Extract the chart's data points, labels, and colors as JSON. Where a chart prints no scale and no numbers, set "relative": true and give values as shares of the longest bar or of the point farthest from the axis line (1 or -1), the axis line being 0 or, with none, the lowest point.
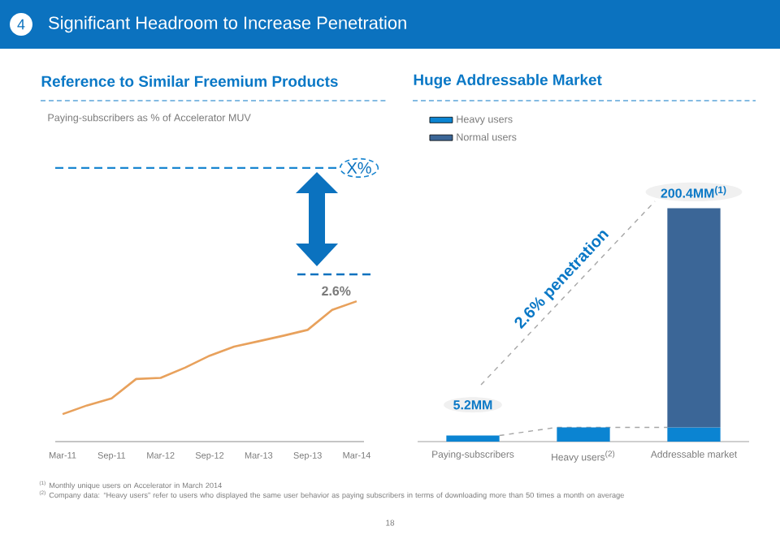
{
  "chart_data": [
    {
      "type": "other",
      "title": "Significant Headroom to Increase Penetration",
      "annotations": [
        "4",
        "$^{(1)}$ Monthly unique users on Accelerator in March 2014",
        "$^{(2)}$ Company data: “Heavy users” refer to users who displayed the same user behavior as paying subscribers in terms of downloading more than 50 times a month on average",
        "18"
      ]
    },
    {
      "type": "line",
      "title": "Reference to Similar Freemium Products",
      "subtitle": "Paying-subscribers as % of Accelerator MUV",
      "categories": [
        "Mar-11",
        null,
        "Sep-11",
        null,
        "Mar-12",
        null,
        "Sep-12",
        null,
        "Mar-13",
        null,
        "Sep-13",
        null,
        "Mar-14"
      ],
      "relative": true,
      "marker": "none",
      "annotations": [
        "2.6%"
      ],
      "series": [
        {
          "color": "#e8a15c",
          "values": [
            0.196,
            0.258,
            0.308,
            0.446,
            0.454,
            0.527,
            0.612,
            0.677,
            0.715,
            0.754,
            0.796,
            0.938,
            1
          ]
        }
      ],
      "ref_lines": [
        {
          "axis": "y",
          "value": 1.95,
          "label": "X%",
          "color": "#1a86d0",
          "line_style": "dashed"
        }
      ]
    },
    {
      "type": "bar",
      "stacked": true,
      "title": "Huge Addressable Market",
      "categories": [
        "Paying-subscribers",
        "Heavy users$^{(2)}$",
        "Addressable market"
      ],
      "legend": "top left",
      "series": [
        {
          "name": "Heavy users",
          "color": "#0b84d2",
          "values": [
            5.2,
            12.2,
            12.2
          ],
          "value_labels": [
            "5.2MM",
            null,
            null
          ]
        },
        {
          "name": "Normal users",
          "color": "#3b6697",
          "values": [
            null,
            null,
            188.2
          ]
        }
      ],
      "totals": [
        null,
        null,
        "200.4MM$^{(1)}$"
      ],
      "annotations": [
        "2.6% penetration"
      ]
    }
  ]
}
